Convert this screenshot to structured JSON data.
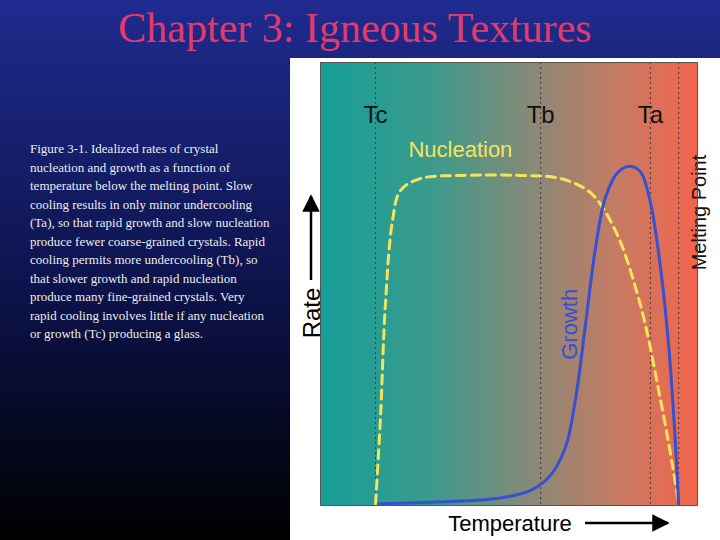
{
  "chart_data": {
    "type": "line",
    "title": "Chapter 3: Igneous Textures",
    "caption": "Figure 3-1.  Idealized rates of crystal nucleation and growth as a function of temperature below the melting point. Slow cooling results in only minor undercooling (Ta), so that rapid growth and slow nucleation produce fewer coarse-grained crystals. Rapid cooling permits more undercooling (Tb), so that slower growth and rapid nucleation produce many fine-grained crystals. Very rapid cooling involves little if any nucleation or growth  (Tc) producing a glass.",
    "x_label": "Temperature",
    "y_label": "Rate",
    "xlim": [
      0,
      100
    ],
    "ylim": [
      0,
      100
    ],
    "tick_labels": false,
    "grid": false,
    "series": [
      {
        "name": "Nucleation",
        "color": "#f4e45c",
        "line_style": "dashed",
        "x": [
          14.6,
          15.9,
          17.2,
          19.1,
          21.2,
          26.5,
          37.1,
          53.1,
          63.7,
          71.6,
          78.2,
          84.9,
          90.2,
          93.4,
          95.0
        ],
        "values": [
          0.4,
          19.6,
          45.1,
          64.3,
          71.1,
          73.8,
          74.5,
          74.5,
          73.8,
          70.6,
          62.1,
          45.1,
          23.8,
          8.9,
          0.4
        ]
      },
      {
        "name": "Growth",
        "color": "#3650d2",
        "line_style": "solid",
        "x": [
          15.4,
          34.5,
          47.7,
          55.7,
          61.0,
          65.0,
          67.6,
          70.3,
          72.9,
          75.6,
          79.0,
          82.2,
          84.9,
          87.5,
          90.2,
          92.3,
          93.9,
          95.0
        ],
        "values": [
          0.4,
          0.9,
          1.7,
          3.4,
          6.8,
          13.2,
          23.8,
          40.9,
          57.9,
          69.6,
          75.3,
          76.6,
          75.3,
          68.5,
          53.6,
          36.6,
          17.4,
          0.4
        ]
      }
    ],
    "annotations": [
      {
        "text": "Tc",
        "x": 14.6
      },
      {
        "text": "Tb",
        "x": 58.4
      },
      {
        "text": "Ta",
        "x": 87.5
      },
      {
        "text": "Melting Point",
        "x": 95.0
      }
    ]
  }
}
